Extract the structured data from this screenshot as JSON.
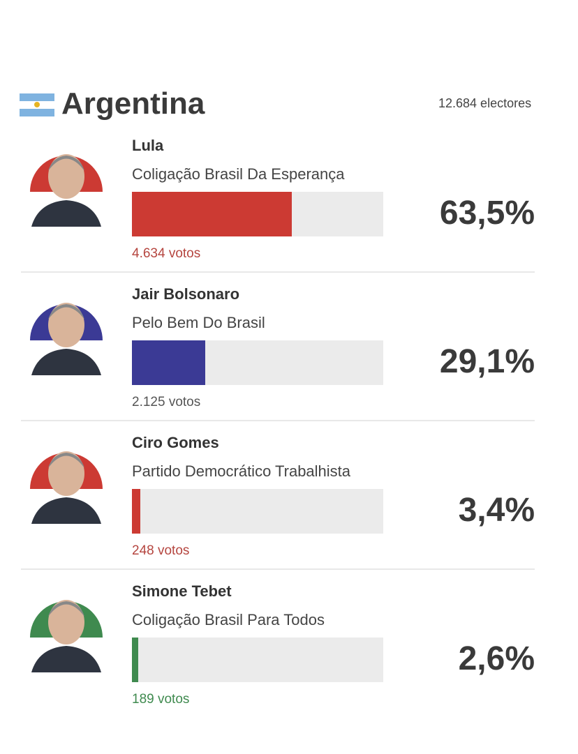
{
  "header": {
    "title": "Argentina",
    "electors": "12.684 electores"
  },
  "bar_range": [
    0,
    100
  ],
  "candidates": [
    {
      "name": "Lula",
      "party": "Coligação Brasil Da Esperança",
      "percent": 63.5,
      "percent_label": "63,5%",
      "votes": "4.634 votos",
      "color": "#cc3a33",
      "votes_color": "#b5453f"
    },
    {
      "name": "Jair Bolsonaro",
      "party": "Pelo Bem Do Brasil",
      "percent": 29.1,
      "percent_label": "29,1%",
      "votes": "2.125 votos",
      "color": "#3b3a95",
      "votes_color": "#555555"
    },
    {
      "name": "Ciro Gomes",
      "party": "Partido Democrático Trabalhista",
      "percent": 3.4,
      "percent_label": "3,4%",
      "votes": "248 votos",
      "color": "#cc3a33",
      "votes_color": "#b5453f"
    },
    {
      "name": "Simone Tebet",
      "party": "Coligação Brasil Para Todos",
      "percent": 2.6,
      "percent_label": "2,6%",
      "votes": "189 votos",
      "color": "#3f8a4f",
      "votes_color": "#3f8a4f"
    }
  ]
}
